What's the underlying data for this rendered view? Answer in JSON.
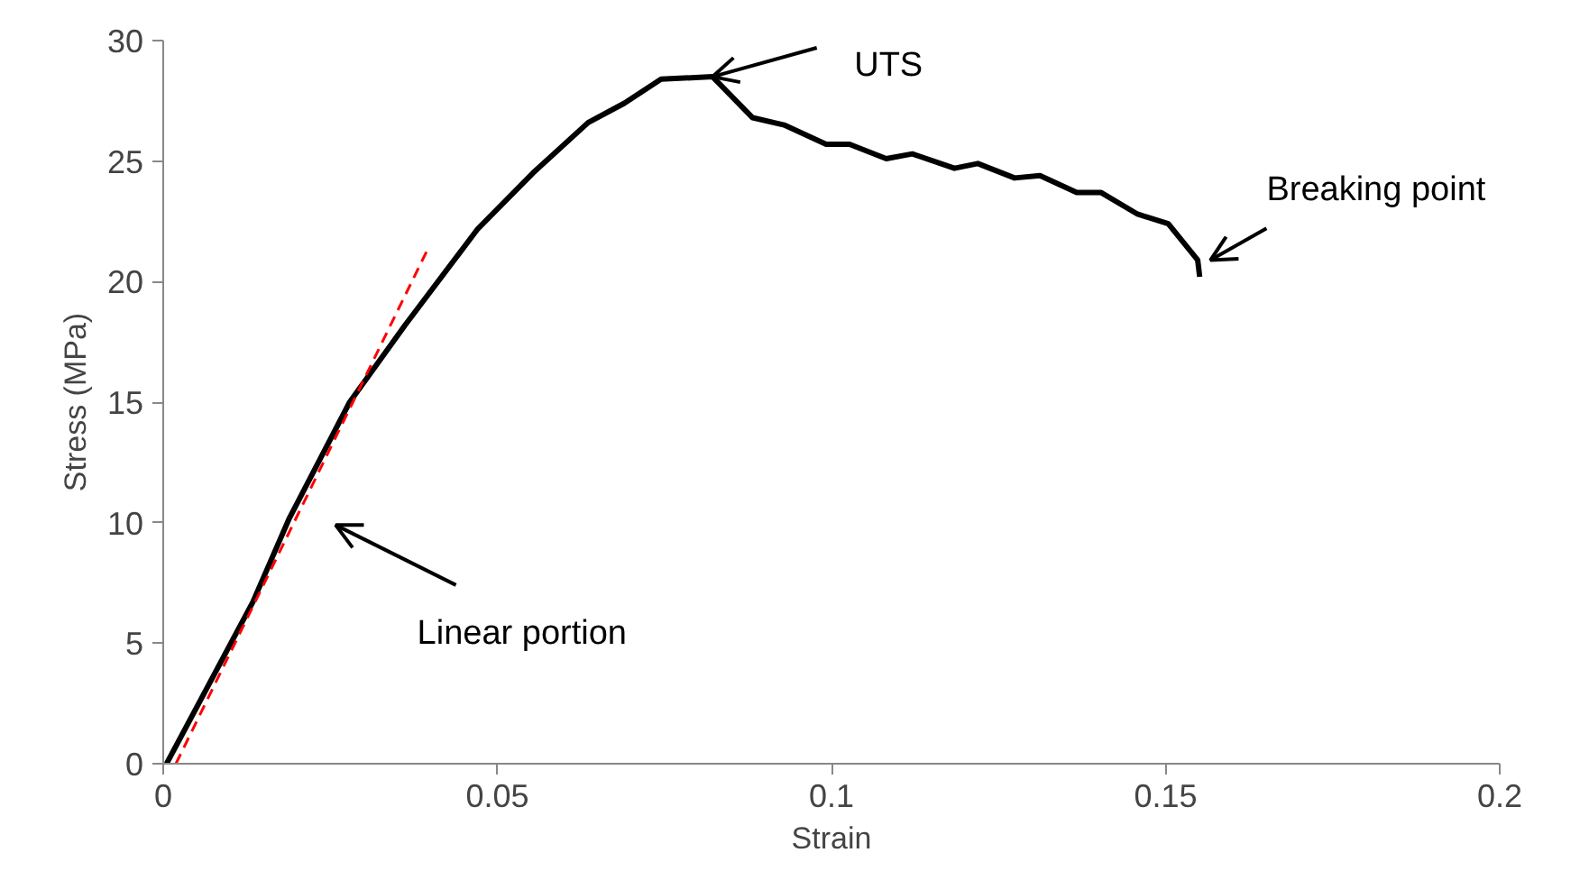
{
  "chart_data": {
    "type": "line",
    "xlabel": "Strain",
    "ylabel": "Stress (MPa)",
    "xlim": [
      0,
      0.2
    ],
    "ylim": [
      0,
      30
    ],
    "xticks": [
      0,
      0.05,
      0.1,
      0.15,
      0.2
    ],
    "yticks": [
      0,
      5,
      10,
      15,
      20,
      25,
      30
    ],
    "grid": false,
    "marker": "none",
    "series": [
      {
        "color": "#000000",
        "line_style": "solid",
        "x": [
          0.0005,
          0.0134,
          0.0189,
          0.0279,
          0.0362,
          0.0471,
          0.0553,
          0.0636,
          0.069,
          0.0745,
          0.0822,
          0.0882,
          0.0929,
          0.0992,
          0.1027,
          0.1082,
          0.1121,
          0.1184,
          0.1219,
          0.1274,
          0.1312,
          0.1367,
          0.1403,
          0.1458,
          0.1504,
          0.1548,
          0.1551
        ],
        "values": [
          0,
          6.7,
          10.2,
          15.0,
          18.2,
          22.2,
          24.5,
          26.6,
          27.4,
          28.4,
          28.5,
          26.8,
          26.5,
          25.7,
          25.7,
          25.1,
          25.3,
          24.7,
          24.9,
          24.3,
          24.4,
          23.7,
          23.7,
          22.8,
          22.4,
          20.9,
          20.2
        ]
      },
      {
        "color": "#ff0000",
        "line_style": "dashed",
        "x": [
          0.0019,
          0.0395
        ],
        "values": [
          0,
          21.3
        ]
      }
    ],
    "annotations": [
      {
        "text": "UTS",
        "x": 0.0822,
        "y": 28.5
      },
      {
        "text": "Breaking point",
        "x": 0.1551,
        "y": 20.2
      },
      "Linear portion"
    ]
  }
}
